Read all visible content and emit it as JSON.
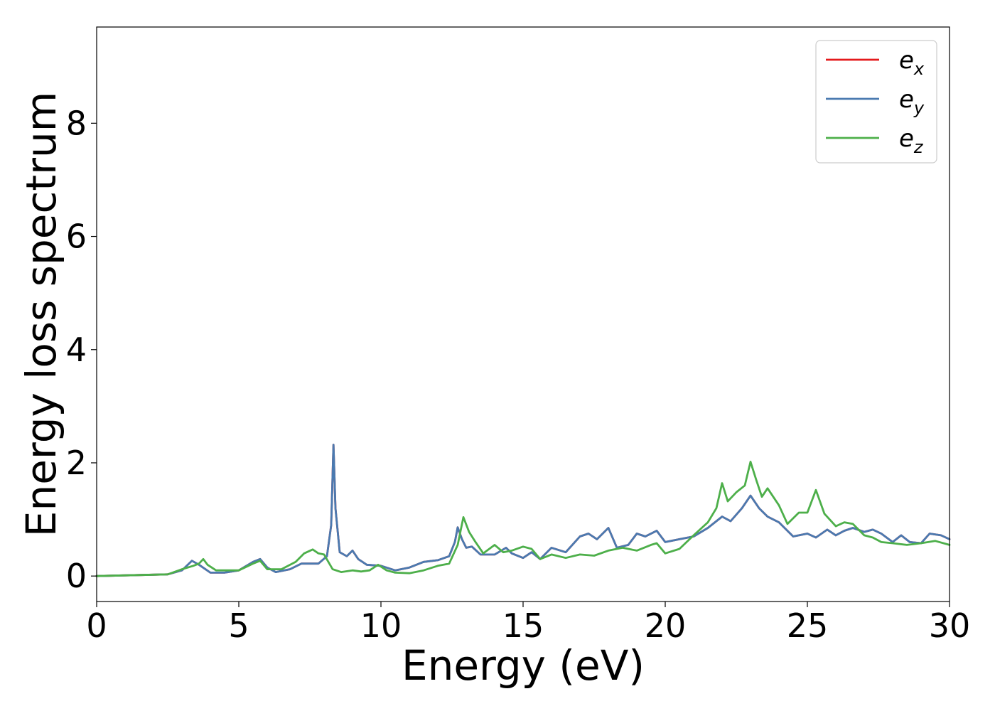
{
  "chart_data": {
    "type": "line",
    "title": "",
    "xlabel": "Energy (eV)",
    "ylabel": "Energy loss spectrum",
    "xlim": [
      0,
      30
    ],
    "ylim": [
      -0.45,
      9.7
    ],
    "xticks": [
      0,
      5,
      10,
      15,
      20,
      25,
      30
    ],
    "xtick_labels": [
      "0",
      "5",
      "10",
      "15",
      "20",
      "25",
      "30"
    ],
    "yticks": [
      0,
      2,
      4,
      6,
      8
    ],
    "ytick_labels": [
      "0",
      "2",
      "4",
      "6",
      "8"
    ],
    "grid": false,
    "legend_position": "top-right",
    "series": [
      {
        "name": "e_x",
        "label_base": "e",
        "label_sub": "x",
        "color": "#e41a1c",
        "x": [
          0,
          2.5,
          3.0,
          3.35,
          3.6,
          4.0,
          4.5,
          5.0,
          5.5,
          5.75,
          6.0,
          6.3,
          6.8,
          7.2,
          7.8,
          8.1,
          8.25,
          8.33,
          8.4,
          8.55,
          8.8,
          9.0,
          9.2,
          9.5,
          10.0,
          10.5,
          11.0,
          11.5,
          12.0,
          12.4,
          12.6,
          12.7,
          12.85,
          13.0,
          13.2,
          13.5,
          14.0,
          14.4,
          14.6,
          15.0,
          15.3,
          15.6,
          16.0,
          16.5,
          17.0,
          17.3,
          17.6,
          18.0,
          18.3,
          18.7,
          19.0,
          19.3,
          19.7,
          20.0,
          20.5,
          21.0,
          21.5,
          22.0,
          22.3,
          22.7,
          23.0,
          23.3,
          23.6,
          24.0,
          24.5,
          25.0,
          25.3,
          25.7,
          26.0,
          26.3,
          26.6,
          27.0,
          27.3,
          27.6,
          28.0,
          28.3,
          28.6,
          29.0,
          29.3,
          29.7,
          30.0
        ],
        "y": [
          0,
          0.03,
          0.1,
          0.27,
          0.2,
          0.06,
          0.06,
          0.1,
          0.25,
          0.3,
          0.15,
          0.07,
          0.12,
          0.22,
          0.22,
          0.35,
          0.9,
          2.32,
          1.2,
          0.42,
          0.35,
          0.45,
          0.3,
          0.2,
          0.18,
          0.1,
          0.15,
          0.25,
          0.28,
          0.35,
          0.6,
          0.86,
          0.65,
          0.5,
          0.52,
          0.38,
          0.38,
          0.5,
          0.4,
          0.32,
          0.42,
          0.3,
          0.5,
          0.42,
          0.7,
          0.75,
          0.65,
          0.85,
          0.5,
          0.55,
          0.75,
          0.7,
          0.8,
          0.6,
          0.65,
          0.7,
          0.85,
          1.05,
          0.97,
          1.2,
          1.42,
          1.2,
          1.05,
          0.95,
          0.7,
          0.75,
          0.68,
          0.82,
          0.72,
          0.8,
          0.85,
          0.78,
          0.82,
          0.75,
          0.6,
          0.72,
          0.6,
          0.58,
          0.75,
          0.72,
          0.65
        ]
      },
      {
        "name": "e_y",
        "label_base": "e",
        "label_sub": "y",
        "color": "#4a7ab0",
        "x": [
          0,
          2.5,
          3.0,
          3.35,
          3.6,
          4.0,
          4.5,
          5.0,
          5.5,
          5.75,
          6.0,
          6.3,
          6.8,
          7.2,
          7.8,
          8.1,
          8.25,
          8.33,
          8.4,
          8.55,
          8.8,
          9.0,
          9.2,
          9.5,
          10.0,
          10.5,
          11.0,
          11.5,
          12.0,
          12.4,
          12.6,
          12.7,
          12.85,
          13.0,
          13.2,
          13.5,
          14.0,
          14.4,
          14.6,
          15.0,
          15.3,
          15.6,
          16.0,
          16.5,
          17.0,
          17.3,
          17.6,
          18.0,
          18.3,
          18.7,
          19.0,
          19.3,
          19.7,
          20.0,
          20.5,
          21.0,
          21.5,
          22.0,
          22.3,
          22.7,
          23.0,
          23.3,
          23.6,
          24.0,
          24.5,
          25.0,
          25.3,
          25.7,
          26.0,
          26.3,
          26.6,
          27.0,
          27.3,
          27.6,
          28.0,
          28.3,
          28.6,
          29.0,
          29.3,
          29.7,
          30.0
        ],
        "y": [
          0,
          0.03,
          0.1,
          0.27,
          0.2,
          0.06,
          0.06,
          0.1,
          0.25,
          0.3,
          0.15,
          0.07,
          0.12,
          0.22,
          0.22,
          0.35,
          0.9,
          2.32,
          1.2,
          0.42,
          0.35,
          0.45,
          0.3,
          0.2,
          0.18,
          0.1,
          0.15,
          0.25,
          0.28,
          0.35,
          0.6,
          0.86,
          0.65,
          0.5,
          0.52,
          0.38,
          0.38,
          0.5,
          0.4,
          0.32,
          0.42,
          0.3,
          0.5,
          0.42,
          0.7,
          0.75,
          0.65,
          0.85,
          0.5,
          0.55,
          0.75,
          0.7,
          0.8,
          0.6,
          0.65,
          0.7,
          0.85,
          1.05,
          0.97,
          1.2,
          1.42,
          1.2,
          1.05,
          0.95,
          0.7,
          0.75,
          0.68,
          0.82,
          0.72,
          0.8,
          0.85,
          0.78,
          0.82,
          0.75,
          0.6,
          0.72,
          0.6,
          0.58,
          0.75,
          0.72,
          0.65
        ]
      },
      {
        "name": "e_z",
        "label_base": "e",
        "label_sub": "z",
        "color": "#4daf4a",
        "x": [
          0,
          2.5,
          3.0,
          3.4,
          3.6,
          3.75,
          3.9,
          4.2,
          4.5,
          5.0,
          5.5,
          5.75,
          6.0,
          6.5,
          7.0,
          7.3,
          7.6,
          7.8,
          8.0,
          8.3,
          8.6,
          9.0,
          9.3,
          9.6,
          9.9,
          10.2,
          10.5,
          11.0,
          11.5,
          12.0,
          12.4,
          12.7,
          12.9,
          13.1,
          13.3,
          13.6,
          14.0,
          14.3,
          14.6,
          15.0,
          15.3,
          15.6,
          16.0,
          16.5,
          17.0,
          17.5,
          18.0,
          18.5,
          19.0,
          19.5,
          19.7,
          20.0,
          20.5,
          21.0,
          21.5,
          21.8,
          22.0,
          22.2,
          22.5,
          22.8,
          23.0,
          23.2,
          23.4,
          23.6,
          24.0,
          24.3,
          24.7,
          25.0,
          25.3,
          25.6,
          26.0,
          26.3,
          26.6,
          27.0,
          27.3,
          27.6,
          28.0,
          28.5,
          29.0,
          29.5,
          30.0
        ],
        "y": [
          0,
          0.03,
          0.12,
          0.18,
          0.22,
          0.3,
          0.2,
          0.1,
          0.1,
          0.1,
          0.22,
          0.27,
          0.12,
          0.12,
          0.25,
          0.4,
          0.47,
          0.4,
          0.38,
          0.12,
          0.07,
          0.1,
          0.08,
          0.1,
          0.2,
          0.1,
          0.06,
          0.05,
          0.1,
          0.18,
          0.22,
          0.55,
          1.04,
          0.78,
          0.62,
          0.4,
          0.55,
          0.42,
          0.45,
          0.52,
          0.48,
          0.3,
          0.38,
          0.32,
          0.38,
          0.36,
          0.45,
          0.5,
          0.45,
          0.55,
          0.58,
          0.4,
          0.48,
          0.72,
          0.95,
          1.2,
          1.64,
          1.32,
          1.48,
          1.6,
          2.02,
          1.7,
          1.4,
          1.55,
          1.25,
          0.92,
          1.12,
          1.12,
          1.52,
          1.1,
          0.88,
          0.95,
          0.92,
          0.72,
          0.68,
          0.6,
          0.58,
          0.55,
          0.58,
          0.62,
          0.55
        ]
      }
    ]
  }
}
